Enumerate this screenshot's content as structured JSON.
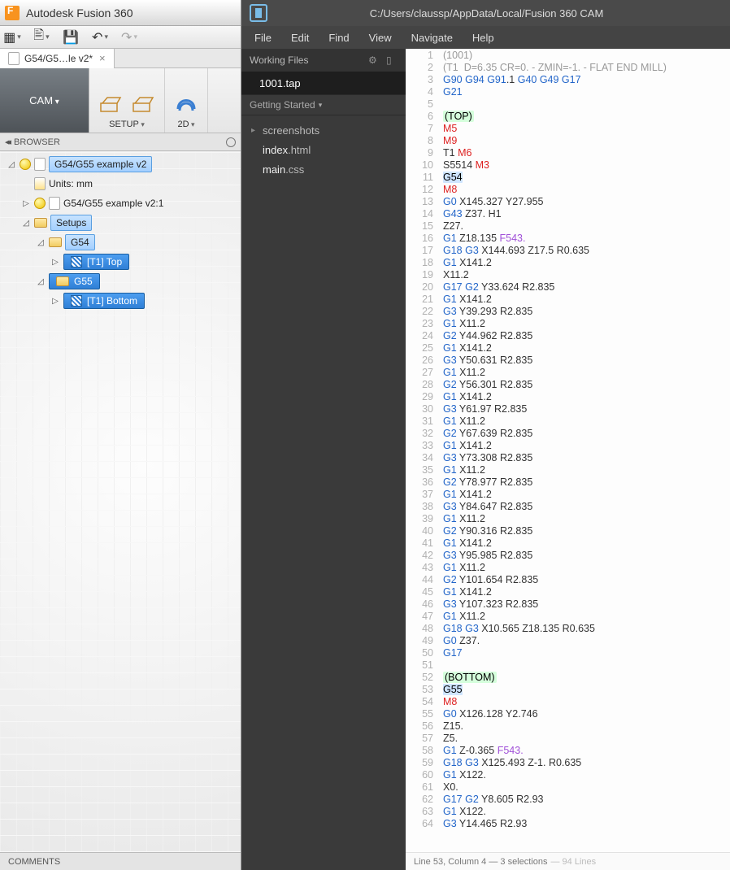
{
  "fusion": {
    "title": "Autodesk Fusion 360",
    "doc_tab": "G54/G5…le v2*",
    "ribbon": {
      "workspace": "CAM",
      "setup": "SETUP",
      "twod": "2D"
    },
    "browser_header": "BROWSER",
    "tree": {
      "root": "G54/G55 example v2",
      "units": "Units: mm",
      "component": "G54/G55 example v2:1",
      "setups": "Setups",
      "g54": "G54",
      "g55": "G55",
      "op_top": "[T1] Top",
      "op_bottom": "[T1] Bottom"
    },
    "comments": "COMMENTS"
  },
  "editor": {
    "title": "C:/Users/claussp/AppData/Local/Fusion 360 CAM",
    "menu": [
      "File",
      "Edit",
      "Find",
      "View",
      "Navigate",
      "Help"
    ],
    "working_files": "Working Files",
    "active_file": "1001.tap",
    "getting_started": "Getting Started",
    "folders": [
      {
        "chev": "▸",
        "bold": "",
        "rest": "screenshots"
      },
      {
        "chev": "",
        "bold": "index",
        "rest": ".html"
      },
      {
        "chev": "",
        "bold": "main",
        "rest": ".css"
      }
    ],
    "status": {
      "main": "Line 53, Column 4 — 3 selections",
      "dim": " — 94 Lines"
    },
    "code": [
      {
        "n": 1,
        "t": [
          [
            "cmt",
            "(1001)"
          ]
        ]
      },
      {
        "n": 2,
        "t": [
          [
            "cmt",
            "(T1  D=6.35 CR=0. - ZMIN=-1. - FLAT END MILL)"
          ]
        ]
      },
      {
        "n": 3,
        "t": [
          [
            "gw",
            "G90 G94 G91"
          ],
          [
            "num",
            ".1 "
          ],
          [
            "gw",
            "G40 G49 G17"
          ]
        ]
      },
      {
        "n": 4,
        "t": [
          [
            "gw",
            "G21"
          ]
        ]
      },
      {
        "n": 5,
        "t": []
      },
      {
        "n": 6,
        "t": [
          [
            "hl",
            "(TOP)"
          ]
        ]
      },
      {
        "n": 7,
        "t": [
          [
            "mw",
            "M5"
          ]
        ]
      },
      {
        "n": 8,
        "t": [
          [
            "mw",
            "M9"
          ]
        ]
      },
      {
        "n": 9,
        "t": [
          [
            "num",
            "T1 "
          ],
          [
            "mw",
            "M6"
          ]
        ]
      },
      {
        "n": 10,
        "t": [
          [
            "num",
            "S5514 "
          ],
          [
            "mw",
            "M3"
          ]
        ]
      },
      {
        "n": 11,
        "t": [
          [
            "sel-code",
            "G54"
          ]
        ]
      },
      {
        "n": 12,
        "t": [
          [
            "mw",
            "M8"
          ]
        ]
      },
      {
        "n": 13,
        "t": [
          [
            "gw",
            "G0"
          ],
          [
            "num",
            " X145.327 Y27.955"
          ]
        ]
      },
      {
        "n": 14,
        "t": [
          [
            "gw",
            "G43"
          ],
          [
            "num",
            " Z37. H1"
          ]
        ]
      },
      {
        "n": 15,
        "t": [
          [
            "num",
            "Z27."
          ]
        ]
      },
      {
        "n": 16,
        "t": [
          [
            "gw",
            "G1"
          ],
          [
            "num",
            " Z18.135 "
          ],
          [
            "fw",
            "F543."
          ]
        ]
      },
      {
        "n": 17,
        "t": [
          [
            "gw",
            "G18 G3"
          ],
          [
            "num",
            " X144.693 Z17.5 R0.635"
          ]
        ]
      },
      {
        "n": 18,
        "t": [
          [
            "gw",
            "G1"
          ],
          [
            "num",
            " X141.2"
          ]
        ]
      },
      {
        "n": 19,
        "t": [
          [
            "num",
            "X11.2"
          ]
        ]
      },
      {
        "n": 20,
        "t": [
          [
            "gw",
            "G17 G2"
          ],
          [
            "num",
            " Y33.624 R2.835"
          ]
        ]
      },
      {
        "n": 21,
        "t": [
          [
            "gw",
            "G1"
          ],
          [
            "num",
            " X141.2"
          ]
        ]
      },
      {
        "n": 22,
        "t": [
          [
            "gw",
            "G3"
          ],
          [
            "num",
            " Y39.293 R2.835"
          ]
        ]
      },
      {
        "n": 23,
        "t": [
          [
            "gw",
            "G1"
          ],
          [
            "num",
            " X11.2"
          ]
        ]
      },
      {
        "n": 24,
        "t": [
          [
            "gw",
            "G2"
          ],
          [
            "num",
            " Y44.962 R2.835"
          ]
        ]
      },
      {
        "n": 25,
        "t": [
          [
            "gw",
            "G1"
          ],
          [
            "num",
            " X141.2"
          ]
        ]
      },
      {
        "n": 26,
        "t": [
          [
            "gw",
            "G3"
          ],
          [
            "num",
            " Y50.631 R2.835"
          ]
        ]
      },
      {
        "n": 27,
        "t": [
          [
            "gw",
            "G1"
          ],
          [
            "num",
            " X11.2"
          ]
        ]
      },
      {
        "n": 28,
        "t": [
          [
            "gw",
            "G2"
          ],
          [
            "num",
            " Y56.301 R2.835"
          ]
        ]
      },
      {
        "n": 29,
        "t": [
          [
            "gw",
            "G1"
          ],
          [
            "num",
            " X141.2"
          ]
        ]
      },
      {
        "n": 30,
        "t": [
          [
            "gw",
            "G3"
          ],
          [
            "num",
            " Y61.97 R2.835"
          ]
        ]
      },
      {
        "n": 31,
        "t": [
          [
            "gw",
            "G1"
          ],
          [
            "num",
            " X11.2"
          ]
        ]
      },
      {
        "n": 32,
        "t": [
          [
            "gw",
            "G2"
          ],
          [
            "num",
            " Y67.639 R2.835"
          ]
        ]
      },
      {
        "n": 33,
        "t": [
          [
            "gw",
            "G1"
          ],
          [
            "num",
            " X141.2"
          ]
        ]
      },
      {
        "n": 34,
        "t": [
          [
            "gw",
            "G3"
          ],
          [
            "num",
            " Y73.308 R2.835"
          ]
        ]
      },
      {
        "n": 35,
        "t": [
          [
            "gw",
            "G1"
          ],
          [
            "num",
            " X11.2"
          ]
        ]
      },
      {
        "n": 36,
        "t": [
          [
            "gw",
            "G2"
          ],
          [
            "num",
            " Y78.977 R2.835"
          ]
        ]
      },
      {
        "n": 37,
        "t": [
          [
            "gw",
            "G1"
          ],
          [
            "num",
            " X141.2"
          ]
        ]
      },
      {
        "n": 38,
        "t": [
          [
            "gw",
            "G3"
          ],
          [
            "num",
            " Y84.647 R2.835"
          ]
        ]
      },
      {
        "n": 39,
        "t": [
          [
            "gw",
            "G1"
          ],
          [
            "num",
            " X11.2"
          ]
        ]
      },
      {
        "n": 40,
        "t": [
          [
            "gw",
            "G2"
          ],
          [
            "num",
            " Y90.316 R2.835"
          ]
        ]
      },
      {
        "n": 41,
        "t": [
          [
            "gw",
            "G1"
          ],
          [
            "num",
            " X141.2"
          ]
        ]
      },
      {
        "n": 42,
        "t": [
          [
            "gw",
            "G3"
          ],
          [
            "num",
            " Y95.985 R2.835"
          ]
        ]
      },
      {
        "n": 43,
        "t": [
          [
            "gw",
            "G1"
          ],
          [
            "num",
            " X11.2"
          ]
        ]
      },
      {
        "n": 44,
        "t": [
          [
            "gw",
            "G2"
          ],
          [
            "num",
            " Y101.654 R2.835"
          ]
        ]
      },
      {
        "n": 45,
        "t": [
          [
            "gw",
            "G1"
          ],
          [
            "num",
            " X141.2"
          ]
        ]
      },
      {
        "n": 46,
        "t": [
          [
            "gw",
            "G3"
          ],
          [
            "num",
            " Y107.323 R2.835"
          ]
        ]
      },
      {
        "n": 47,
        "t": [
          [
            "gw",
            "G1"
          ],
          [
            "num",
            " X11.2"
          ]
        ]
      },
      {
        "n": 48,
        "t": [
          [
            "gw",
            "G18 G3"
          ],
          [
            "num",
            " X10.565 Z18.135 R0.635"
          ]
        ]
      },
      {
        "n": 49,
        "t": [
          [
            "gw",
            "G0"
          ],
          [
            "num",
            " Z37."
          ]
        ]
      },
      {
        "n": 50,
        "t": [
          [
            "gw",
            "G17"
          ]
        ]
      },
      {
        "n": 51,
        "t": []
      },
      {
        "n": 52,
        "t": [
          [
            "hl",
            "(BOTTOM)"
          ]
        ]
      },
      {
        "n": 53,
        "t": [
          [
            "sel-code",
            "G55"
          ]
        ]
      },
      {
        "n": 54,
        "t": [
          [
            "mw",
            "M8"
          ]
        ]
      },
      {
        "n": 55,
        "t": [
          [
            "gw",
            "G0"
          ],
          [
            "num",
            " X126.128 Y2.746"
          ]
        ]
      },
      {
        "n": 56,
        "t": [
          [
            "num",
            "Z15."
          ]
        ]
      },
      {
        "n": 57,
        "t": [
          [
            "num",
            "Z5."
          ]
        ]
      },
      {
        "n": 58,
        "t": [
          [
            "gw",
            "G1"
          ],
          [
            "num",
            " Z-0.365 "
          ],
          [
            "fw",
            "F543."
          ]
        ]
      },
      {
        "n": 59,
        "t": [
          [
            "gw",
            "G18 G3"
          ],
          [
            "num",
            " X125.493 Z-1. R0.635"
          ]
        ]
      },
      {
        "n": 60,
        "t": [
          [
            "gw",
            "G1"
          ],
          [
            "num",
            " X122."
          ]
        ]
      },
      {
        "n": 61,
        "t": [
          [
            "num",
            "X0."
          ]
        ]
      },
      {
        "n": 62,
        "t": [
          [
            "gw",
            "G17 G2"
          ],
          [
            "num",
            " Y8.605 R2.93"
          ]
        ]
      },
      {
        "n": 63,
        "t": [
          [
            "gw",
            "G1"
          ],
          [
            "num",
            " X122."
          ]
        ]
      },
      {
        "n": 64,
        "t": [
          [
            "gw",
            "G3"
          ],
          [
            "num",
            " Y14.465 R2.93"
          ]
        ]
      }
    ]
  }
}
